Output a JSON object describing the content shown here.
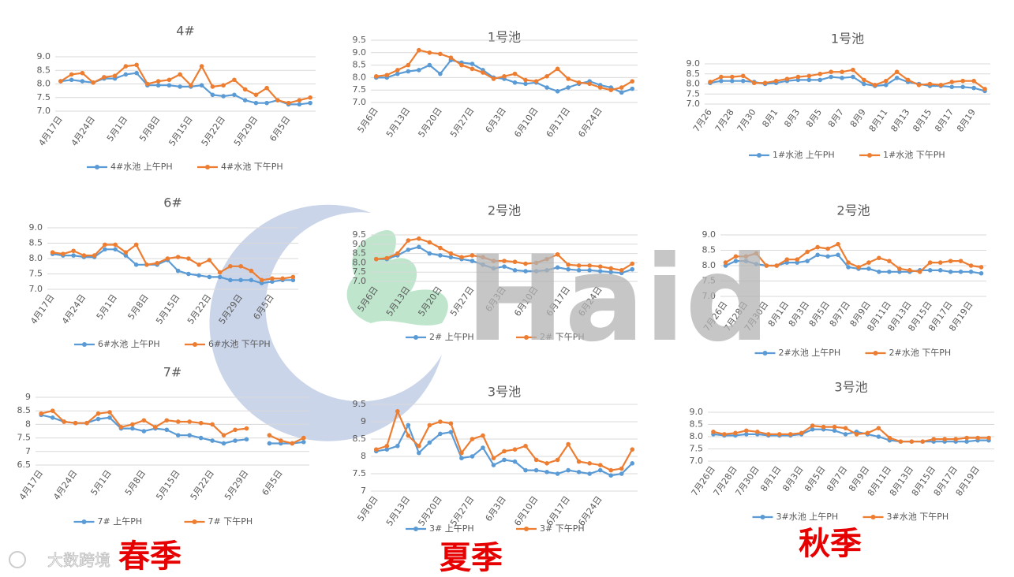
{
  "chart_data": [
    {
      "type": "line",
      "title": "4#",
      "grid": true,
      "ylim": [
        7,
        9
      ],
      "yticks": [
        {
          "value": 7,
          "label": "7.0"
        },
        7.5,
        {
          "value": 8,
          "label": "8.0"
        },
        8.5,
        {
          "value": 9,
          "label": "9.0"
        }
      ],
      "categories": [
        "4月17日",
        null,
        null,
        "4月24日",
        null,
        null,
        "5月1日",
        null,
        null,
        "5月8日",
        null,
        null,
        "5月15日",
        null,
        null,
        "5月22日",
        null,
        null,
        "5月29日",
        null,
        null,
        "6月5日",
        null,
        null
      ],
      "series": [
        {
          "name": "4#水池 上午PH",
          "color": "#5b9bd5",
          "values": [
            8.1,
            8.15,
            8.1,
            8.05,
            8.2,
            8.2,
            8.35,
            8.4,
            7.95,
            7.95,
            7.95,
            7.9,
            7.9,
            7.95,
            7.6,
            7.55,
            7.6,
            7.4,
            7.3,
            7.3,
            7.4,
            7.25,
            7.25,
            7.3
          ]
        },
        {
          "name": "4#水池 下午PH",
          "color": "#ed7d31",
          "values": [
            8.1,
            8.35,
            8.4,
            8.05,
            8.25,
            8.3,
            8.65,
            8.7,
            8.0,
            8.1,
            8.15,
            8.35,
            7.95,
            8.65,
            7.9,
            7.95,
            8.15,
            7.8,
            7.6,
            7.85,
            7.4,
            7.3,
            7.4,
            7.5
          ]
        }
      ]
    },
    {
      "type": "line",
      "title": "1号池",
      "grid": true,
      "ylim": [
        7,
        9.5
      ],
      "yticks": [
        {
          "value": 7,
          "label": "7.0"
        },
        7.5,
        {
          "value": 8,
          "label": "8.0"
        },
        8.5,
        {
          "value": 9,
          "label": "9.0"
        },
        9.5
      ],
      "categories": [
        "5月6日",
        null,
        null,
        "5月13日",
        null,
        null,
        "5月20日",
        null,
        null,
        "5月27日",
        null,
        null,
        "6月3日",
        null,
        null,
        "6月10日",
        null,
        null,
        "6月17日",
        null,
        null,
        "6月24日",
        null,
        null,
        null
      ],
      "series": [
        {
          "color": "#5b9bd5",
          "values": [
            8.0,
            8.0,
            8.15,
            8.25,
            8.3,
            8.5,
            8.15,
            8.7,
            8.6,
            8.55,
            8.3,
            8.0,
            7.95,
            7.8,
            7.75,
            7.8,
            7.6,
            7.45,
            7.6,
            7.75,
            7.85,
            7.7,
            7.6,
            7.4,
            7.55
          ]
        },
        {
          "color": "#ed7d31",
          "values": [
            8.05,
            8.1,
            8.3,
            8.5,
            9.1,
            9.0,
            8.95,
            8.8,
            8.5,
            8.35,
            8.2,
            7.95,
            8.05,
            8.15,
            7.9,
            7.85,
            8.05,
            8.35,
            7.95,
            7.8,
            7.75,
            7.6,
            7.5,
            7.6,
            7.85
          ]
        }
      ]
    },
    {
      "type": "line",
      "title": "1号池",
      "grid": true,
      "ylim": [
        7,
        9
      ],
      "yticks": [
        {
          "value": 7,
          "label": "7.0"
        },
        7.5,
        {
          "value": 8,
          "label": "8.0"
        },
        8.5,
        {
          "value": 9,
          "label": "9.0"
        }
      ],
      "categories": [
        "7月26",
        null,
        "7月28",
        null,
        "7月30",
        null,
        "8月1",
        null,
        "8月3",
        null,
        "8月5",
        null,
        "8月7",
        null,
        "8月9",
        null,
        "8月11",
        null,
        "8月13",
        null,
        "8月15",
        null,
        "8月17",
        null,
        "8月19",
        null
      ],
      "series": [
        {
          "name": "1#水池 上午PH",
          "color": "#5b9bd5",
          "values": [
            8.05,
            8.15,
            8.15,
            8.15,
            8.1,
            8.0,
            8.05,
            8.15,
            8.2,
            8.2,
            8.2,
            8.35,
            8.3,
            8.35,
            8.0,
            7.9,
            7.95,
            8.3,
            8.1,
            8.0,
            7.9,
            7.9,
            7.85,
            7.85,
            7.8,
            7.65
          ]
        },
        {
          "name": "1#水池 下午PH",
          "color": "#ed7d31",
          "values": [
            8.1,
            8.35,
            8.35,
            8.4,
            8.05,
            8.05,
            8.15,
            8.25,
            8.35,
            8.4,
            8.5,
            8.6,
            8.6,
            8.7,
            8.2,
            7.95,
            8.15,
            8.6,
            8.2,
            7.95,
            8.0,
            7.95,
            8.1,
            8.15,
            8.15,
            7.75
          ]
        }
      ]
    },
    {
      "type": "line",
      "title": "6#",
      "grid": true,
      "ylim": [
        7,
        9
      ],
      "yticks": [
        {
          "value": 7,
          "label": "7.0"
        },
        7.5,
        {
          "value": 8,
          "label": "8.0"
        },
        8.5,
        {
          "value": 9,
          "label": "9.0"
        }
      ],
      "categories": [
        "4月17日",
        null,
        null,
        "4月24日",
        null,
        null,
        "5月1日",
        null,
        null,
        "5月8日",
        null,
        null,
        "5月15日",
        null,
        null,
        "5月22日",
        null,
        null,
        "5月29日",
        null,
        null,
        "6月5日",
        null,
        null
      ],
      "series": [
        {
          "name": "6#水池 上午PH",
          "color": "#5b9bd5",
          "values": [
            8.15,
            8.1,
            8.1,
            8.05,
            8.05,
            8.3,
            8.3,
            8.1,
            7.8,
            7.8,
            7.8,
            7.95,
            7.6,
            7.5,
            7.45,
            7.4,
            7.4,
            7.3,
            7.3,
            7.3,
            7.2,
            7.25,
            7.3,
            7.3
          ]
        },
        {
          "name": "6#水池 下午PH",
          "color": "#ed7d31",
          "values": [
            8.2,
            8.15,
            8.25,
            8.1,
            8.1,
            8.45,
            8.45,
            8.2,
            8.45,
            7.8,
            7.85,
            8.0,
            8.05,
            8.0,
            7.8,
            7.95,
            7.55,
            7.75,
            7.75,
            7.6,
            7.3,
            7.35,
            7.35,
            7.4
          ]
        }
      ]
    },
    {
      "type": "line",
      "title": "2号池",
      "grid": true,
      "ylim": [
        7,
        9.5
      ],
      "yticks": [
        {
          "value": 7,
          "label": "7.0"
        },
        7.5,
        {
          "value": 8,
          "label": "8.0"
        },
        8.5,
        {
          "value": 9,
          "label": "9.0"
        },
        9.5
      ],
      "categories": [
        "5月6日",
        null,
        null,
        "5月13日",
        null,
        null,
        "5月20日",
        null,
        null,
        "5月27日",
        null,
        null,
        "6月3日",
        null,
        null,
        "6月10日",
        null,
        null,
        "6月17日",
        null,
        null,
        "6月24日",
        null,
        null,
        null
      ],
      "series": [
        {
          "name": "2# 上午PH",
          "color": "#5b9bd5",
          "values": [
            8.2,
            8.2,
            8.4,
            8.7,
            8.85,
            8.5,
            8.4,
            8.3,
            8.2,
            8.1,
            7.9,
            7.7,
            7.8,
            7.6,
            7.55,
            7.55,
            7.6,
            7.75,
            7.65,
            7.6,
            7.6,
            7.55,
            7.5,
            7.45,
            7.65
          ]
        },
        {
          "name": "2# 下午PH",
          "color": "#ed7d31",
          "values": [
            8.2,
            8.25,
            8.5,
            9.2,
            9.3,
            9.1,
            8.8,
            8.5,
            8.3,
            8.4,
            8.3,
            8.1,
            8.1,
            8.05,
            7.95,
            8.0,
            8.2,
            8.45,
            7.9,
            7.85,
            7.85,
            7.8,
            7.7,
            7.6,
            7.95
          ]
        }
      ]
    },
    {
      "type": "line",
      "title": "2号池",
      "grid": true,
      "ylim": [
        7,
        9
      ],
      "yticks": [
        {
          "value": 7,
          "label": "7.0"
        },
        7.5,
        {
          "value": 8,
          "label": "8.0"
        },
        8.5,
        {
          "value": 9,
          "label": "9.0"
        }
      ],
      "categories": [
        "7月26日",
        null,
        "7月28日",
        null,
        "7月30日",
        null,
        "8月1日",
        null,
        "8月3日",
        null,
        "8月5日",
        null,
        "8月7日",
        null,
        "8月9日",
        null,
        "8月11日",
        null,
        "8月13日",
        null,
        "8月15日",
        null,
        "8月17日",
        null,
        "8月19日",
        null
      ],
      "series": [
        {
          "name": "2#水池 上午PH",
          "color": "#5b9bd5",
          "values": [
            8.0,
            8.15,
            8.15,
            8.05,
            8.0,
            8.0,
            8.1,
            8.1,
            8.15,
            8.35,
            8.3,
            8.35,
            7.95,
            7.9,
            7.9,
            7.8,
            7.8,
            7.8,
            7.8,
            7.85,
            7.85,
            7.85,
            7.8,
            7.8,
            7.8,
            7.75
          ]
        },
        {
          "name": "2#水池 下午PH",
          "color": "#ed7d31",
          "values": [
            8.1,
            8.3,
            8.3,
            8.4,
            8.0,
            8.0,
            8.2,
            8.2,
            8.45,
            8.6,
            8.55,
            8.7,
            8.1,
            7.95,
            8.1,
            8.25,
            8.15,
            7.9,
            7.85,
            7.8,
            8.1,
            8.1,
            8.15,
            8.15,
            8.0,
            7.95
          ]
        }
      ]
    },
    {
      "type": "line",
      "title": "7#",
      "grid": true,
      "ylim": [
        6.5,
        9
      ],
      "yticks": [
        6.5,
        7,
        7.5,
        8,
        8.5,
        9
      ],
      "categories": [
        "4月17日",
        null,
        null,
        "4月24日",
        null,
        null,
        "5月1日",
        null,
        null,
        "5月8日",
        null,
        null,
        "5月15日",
        null,
        null,
        "5月22日",
        null,
        null,
        "5月29日",
        null,
        null,
        "6月5日",
        null,
        null
      ],
      "series": [
        {
          "name": "7# 上午PH",
          "color": "#5b9bd5",
          "values": [
            8.35,
            8.25,
            8.1,
            8.05,
            8.05,
            8.2,
            8.25,
            7.85,
            7.85,
            7.75,
            7.85,
            7.8,
            7.6,
            7.6,
            7.5,
            7.4,
            7.3,
            7.4,
            7.45,
            null,
            7.3,
            7.3,
            7.3,
            7.35
          ]
        },
        {
          "name": "7# 下午PH",
          "color": "#ed7d31",
          "values": [
            8.4,
            8.5,
            8.1,
            8.05,
            8.05,
            8.4,
            8.45,
            7.9,
            8.0,
            8.15,
            7.9,
            8.15,
            8.1,
            8.1,
            8.05,
            8.0,
            7.6,
            7.8,
            7.85,
            null,
            7.6,
            7.4,
            7.3,
            7.5
          ]
        }
      ]
    },
    {
      "type": "line",
      "title": "3号池",
      "grid": true,
      "ylim": [
        7,
        9.5
      ],
      "yticks": [
        7,
        7.5,
        8,
        8.5,
        9,
        9.5
      ],
      "categories": [
        "5月6日",
        null,
        null,
        "5月13日",
        null,
        null,
        "5月20日",
        null,
        null,
        "5月27日",
        null,
        null,
        "6月3日",
        null,
        null,
        "6月10日",
        null,
        null,
        "6月17日",
        null,
        null,
        "6月24日",
        null,
        null,
        null
      ],
      "series": [
        {
          "name": "3# 上午PH",
          "color": "#5b9bd5",
          "values": [
            8.15,
            8.2,
            8.3,
            8.9,
            8.1,
            8.4,
            8.65,
            8.7,
            7.95,
            8.0,
            8.25,
            7.75,
            7.9,
            7.85,
            7.6,
            7.6,
            7.55,
            7.5,
            7.6,
            7.55,
            7.5,
            7.6,
            7.45,
            7.5,
            7.8
          ]
        },
        {
          "name": "3# 下午PH",
          "color": "#ed7d31",
          "values": [
            8.2,
            8.3,
            9.3,
            8.6,
            8.3,
            8.9,
            9.0,
            8.95,
            8.1,
            8.5,
            8.6,
            7.95,
            8.15,
            8.2,
            8.3,
            7.9,
            7.8,
            7.9,
            8.35,
            7.85,
            7.8,
            7.75,
            7.6,
            7.65,
            8.2
          ]
        }
      ]
    },
    {
      "type": "line",
      "title": "3号池",
      "grid": true,
      "ylim": [
        7,
        9
      ],
      "yticks": [
        {
          "value": 7,
          "label": "7.0"
        },
        7.5,
        {
          "value": 8,
          "label": "8.0"
        },
        8.5,
        {
          "value": 9,
          "label": "9.0"
        }
      ],
      "categories": [
        "7月26日",
        null,
        "7月28日",
        null,
        "7月30日",
        null,
        "8月1日",
        null,
        "8月3日",
        null,
        "8月5日",
        null,
        "8月7日",
        null,
        "8月9日",
        null,
        "8月11日",
        null,
        "8月13日",
        null,
        "8月15日",
        null,
        "8月17日",
        null,
        "8月19日",
        null
      ],
      "series": [
        {
          "name": "3#水池 上午PH",
          "color": "#5b9bd5",
          "values": [
            8.1,
            8.05,
            8.05,
            8.1,
            8.1,
            8.05,
            8.05,
            8.05,
            8.1,
            8.3,
            8.3,
            8.25,
            8.1,
            8.2,
            8.1,
            8.0,
            7.85,
            7.8,
            7.8,
            7.8,
            7.8,
            7.8,
            7.8,
            7.8,
            7.85,
            7.85
          ]
        },
        {
          "name": "3#水池 下午PH",
          "color": "#ed7d31",
          "values": [
            8.2,
            8.1,
            8.15,
            8.25,
            8.2,
            8.1,
            8.1,
            8.1,
            8.15,
            8.45,
            8.4,
            8.4,
            8.35,
            8.1,
            8.15,
            8.35,
            7.95,
            7.8,
            7.8,
            7.8,
            7.9,
            7.9,
            7.9,
            7.95,
            7.95,
            7.95
          ]
        }
      ]
    }
  ],
  "seasons": [
    "春季",
    "夏季",
    "秋季"
  ],
  "watermark": {
    "logo": "Haid",
    "source": "大数跨境"
  }
}
